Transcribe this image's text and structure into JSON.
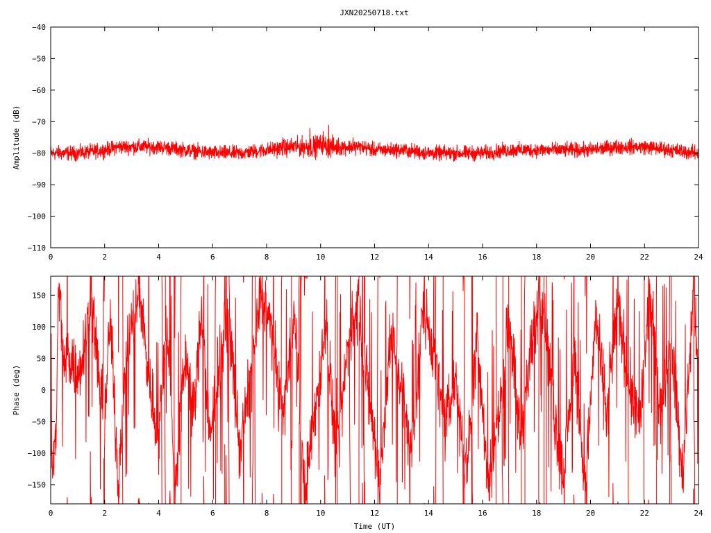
{
  "title": "JXN20250718.txt",
  "chart_data": [
    {
      "type": "line",
      "panel": "amplitude",
      "ylabel": "Amplitude (dB)",
      "xlabel": "",
      "xlim": [
        0,
        24
      ],
      "ylim": [
        -110,
        -40
      ],
      "xticks": [
        0,
        2,
        4,
        6,
        8,
        10,
        12,
        14,
        16,
        18,
        20,
        22,
        24
      ],
      "yticks": [
        -110,
        -100,
        -90,
        -80,
        -70,
        -60,
        -50,
        -40
      ],
      "grid": false,
      "color": "#ff0000",
      "series": [
        {
          "x": [
            0,
            1,
            2,
            2.5,
            3,
            4,
            5,
            6,
            7,
            8,
            9,
            9.8,
            10,
            10.3,
            11,
            11.5,
            12,
            13,
            14,
            15,
            16,
            17,
            18,
            19,
            20,
            21,
            22,
            23,
            24
          ],
          "values": [
            -80,
            -80,
            -79,
            -78,
            -78,
            -78,
            -79,
            -80,
            -80,
            -79,
            -78,
            -78,
            -77,
            -78,
            -78,
            -78,
            -79,
            -79,
            -80,
            -80,
            -80,
            -79,
            -79,
            -79,
            -79,
            -78,
            -78,
            -79,
            -80
          ],
          "spread": [
            2,
            2,
            2,
            2,
            2,
            2,
            2,
            2,
            2,
            2,
            2.5,
            3,
            2.5,
            3,
            2,
            2,
            2,
            2,
            2,
            2,
            2,
            2,
            2,
            2,
            2,
            2,
            2,
            2,
            2
          ],
          "peaks": [
            {
              "x": 9.6,
              "y": -72
            },
            {
              "x": 10.3,
              "y": -71
            },
            {
              "x": 10.1,
              "y": -73
            },
            {
              "x": 11.2,
              "y": -75
            },
            {
              "x": 8.6,
              "y": -75
            }
          ]
        }
      ]
    },
    {
      "type": "line",
      "panel": "phase",
      "ylabel": "Phase (deg)",
      "xlabel": "Time (UT)",
      "xlim": [
        0,
        24
      ],
      "ylim": [
        -180,
        180
      ],
      "xticks": [
        0,
        2,
        4,
        6,
        8,
        10,
        12,
        14,
        16,
        18,
        20,
        22,
        24
      ],
      "yticks": [
        -150,
        -100,
        -50,
        0,
        50,
        100,
        150
      ],
      "grid": false,
      "color": "#ff0000",
      "series": [
        {
          "x": [
            0,
            0.1,
            0.2,
            0.3,
            0.5,
            0.7,
            1.0,
            1.3,
            1.5,
            1.7,
            2.0,
            2.2,
            2.5,
            2.8,
            3.0,
            3.3,
            3.6,
            4.0,
            4.3,
            4.6,
            5.0,
            5.3,
            5.6,
            5.9,
            6.2,
            6.6,
            7.0,
            7.4,
            7.8,
            8.2,
            8.6,
            9.0,
            9.4,
            9.8,
            10.2,
            10.6,
            11.0,
            11.4,
            11.8,
            12.2,
            12.6,
            13.0,
            13.4,
            13.8,
            14.2,
            14.6,
            15.0,
            15.4,
            15.8,
            16.2,
            16.6,
            17.0,
            17.4,
            17.8,
            18.2,
            18.6,
            19.0,
            19.4,
            19.8,
            20.2,
            20.6,
            21.0,
            21.4,
            21.8,
            22.2,
            22.6,
            23.0,
            23.4,
            23.8,
            24.0
          ],
          "values": [
            -80,
            -120,
            -60,
            170,
            30,
            60,
            20,
            90,
            150,
            60,
            -60,
            120,
            -140,
            50,
            100,
            160,
            30,
            -80,
            120,
            -150,
            60,
            -40,
            130,
            -90,
            40,
            120,
            -100,
            20,
            160,
            90,
            -50,
            130,
            -160,
            -30,
            110,
            -120,
            70,
            140,
            -20,
            -150,
            90,
            10,
            -110,
            140,
            60,
            -60,
            20,
            -130,
            100,
            -150,
            -40,
            120,
            -80,
            60,
            160,
            -20,
            -140,
            60,
            -160,
            120,
            -40,
            140,
            20,
            -60,
            150,
            -30,
            80,
            -140,
            150,
            20
          ],
          "noise_deg": 45,
          "wrap_density": 0.35
        }
      ]
    }
  ]
}
